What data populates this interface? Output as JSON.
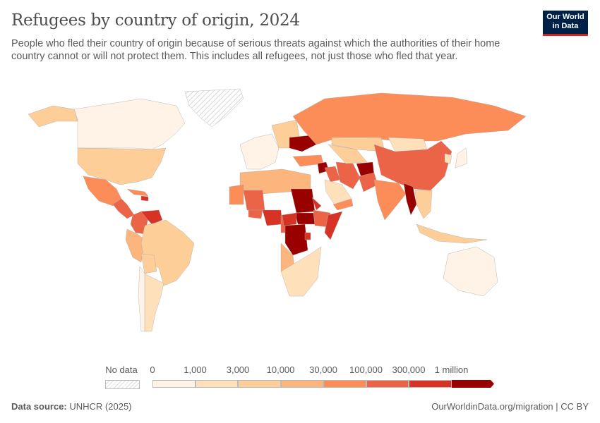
{
  "header": {
    "title": "Refugees by country of origin, 2024",
    "subtitle": "People who fled their country of origin because of serious threats against which the authorities of their home country cannot or will not protect them. This includes all refugees, not just those who fled that year.",
    "logo_line1": "Our World",
    "logo_line2": "in Data"
  },
  "footer": {
    "source_label": "Data source:",
    "source_value": "UNHCR (2025)",
    "url": "OurWorldinData.org/migration | CC BY"
  },
  "chart_data": {
    "type": "choropleth-map",
    "year": 2024,
    "legend": {
      "no_data_label": "No data",
      "no_data_color": "hatched",
      "bins": [
        {
          "from": "0",
          "to": "1,000",
          "color": "#fef3e6"
        },
        {
          "from": "1,000",
          "to": "3,000",
          "color": "#fee1bb"
        },
        {
          "from": "3,000",
          "to": "10,000",
          "color": "#fdce97"
        },
        {
          "from": "10,000",
          "to": "30,000",
          "color": "#fcb57c"
        },
        {
          "from": "30,000",
          "to": "100,000",
          "color": "#fc8d59"
        },
        {
          "from": "100,000",
          "to": "300,000",
          "color": "#ec6448"
        },
        {
          "from": "300,000",
          "to": "1 million",
          "color": "#d63324"
        },
        {
          "from": "1 million",
          "to": "",
          "color": "#990000"
        }
      ],
      "tick_labels": [
        "0",
        "1,000",
        "3,000",
        "10,000",
        "30,000",
        "100,000",
        "300,000",
        "1 million"
      ]
    },
    "regions": [
      {
        "name": "Canada",
        "bin": 0
      },
      {
        "name": "United States",
        "bin": 2
      },
      {
        "name": "Alaska",
        "bin": 2
      },
      {
        "name": "Greenland",
        "bin": "no data"
      },
      {
        "name": "Mexico",
        "bin": 4
      },
      {
        "name": "Central America",
        "bin": 5
      },
      {
        "name": "Caribbean",
        "bin": 4
      },
      {
        "name": "Haiti",
        "bin": 6
      },
      {
        "name": "Venezuela",
        "bin": 6
      },
      {
        "name": "Colombia",
        "bin": 5
      },
      {
        "name": "Peru",
        "bin": 3
      },
      {
        "name": "Brazil",
        "bin": 2
      },
      {
        "name": "Bolivia",
        "bin": 2
      },
      {
        "name": "Argentina",
        "bin": 1
      },
      {
        "name": "Chile",
        "bin": 0
      },
      {
        "name": "Western Europe",
        "bin": 0
      },
      {
        "name": "Eastern Europe",
        "bin": 2
      },
      {
        "name": "Ukraine",
        "bin": 7
      },
      {
        "name": "Russia",
        "bin": 4
      },
      {
        "name": "Turkey",
        "bin": 4
      },
      {
        "name": "Syria",
        "bin": 7
      },
      {
        "name": "Iraq",
        "bin": 5
      },
      {
        "name": "Iran",
        "bin": 5
      },
      {
        "name": "Afghanistan",
        "bin": 7
      },
      {
        "name": "Pakistan",
        "bin": 5
      },
      {
        "name": "India",
        "bin": 4
      },
      {
        "name": "Central Asia",
        "bin": 2
      },
      {
        "name": "Kazakhstan",
        "bin": 2
      },
      {
        "name": "Mongolia",
        "bin": 1
      },
      {
        "name": "China",
        "bin": 5
      },
      {
        "name": "Myanmar",
        "bin": 7
      },
      {
        "name": "Southeast Asia",
        "bin": 2
      },
      {
        "name": "Indonesia",
        "bin": 2
      },
      {
        "name": "Saudi Arabia",
        "bin": 1
      },
      {
        "name": "Yemen",
        "bin": 4
      },
      {
        "name": "North Africa",
        "bin": 3
      },
      {
        "name": "Mali",
        "bin": 5
      },
      {
        "name": "Mauritania",
        "bin": 4
      },
      {
        "name": "Burkina Faso",
        "bin": 5
      },
      {
        "name": "Nigeria",
        "bin": 6
      },
      {
        "name": "Cameroon",
        "bin": 5
      },
      {
        "name": "Sudan",
        "bin": 7
      },
      {
        "name": "South Sudan",
        "bin": 7
      },
      {
        "name": "Central African Republic",
        "bin": 6
      },
      {
        "name": "Ethiopia",
        "bin": 5
      },
      {
        "name": "Eritrea",
        "bin": 6
      },
      {
        "name": "Somalia",
        "bin": 6
      },
      {
        "name": "DR Congo",
        "bin": 7
      },
      {
        "name": "Burundi",
        "bin": 6
      },
      {
        "name": "Angola",
        "bin": 3
      },
      {
        "name": "Southern Africa",
        "bin": 1
      },
      {
        "name": "Australia",
        "bin": 0
      },
      {
        "name": "Japan",
        "bin": 0
      },
      {
        "name": "Korea",
        "bin": 1
      }
    ]
  }
}
